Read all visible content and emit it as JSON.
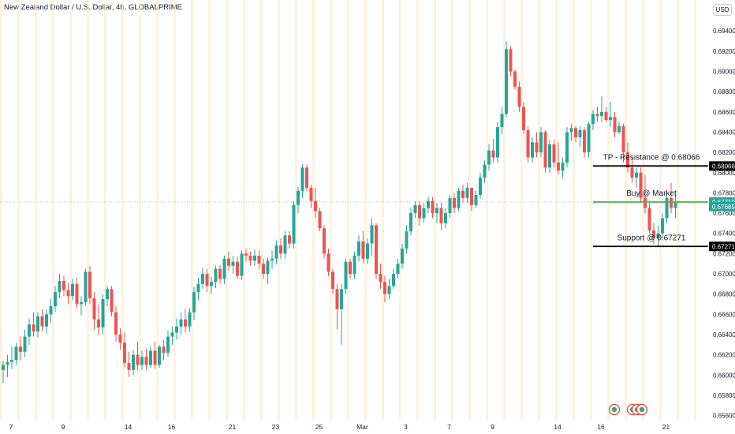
{
  "header": {
    "title": "New Zealand Dollar / U.S. Dollar, 4h, GLOBALPRIME",
    "currency": "USD"
  },
  "chart_data": {
    "type": "candlestick",
    "y_ticks": [
      "0.69400",
      "0.69200",
      "0.69000",
      "0.68800",
      "0.68600",
      "0.68400",
      "0.68200",
      "0.68000",
      "0.67800",
      "0.67600",
      "0.67400",
      "0.67200",
      "0.67000",
      "0.66800",
      "0.66600",
      "0.66400",
      "0.66200",
      "0.66000",
      "0.65800",
      "0.65600"
    ],
    "ylim": [
      0.6555,
      0.6955
    ],
    "x_ticks": [
      "7",
      "9",
      "14",
      "16",
      "21",
      "23",
      "25",
      "Mar",
      "3",
      "7",
      "9",
      "14",
      "16",
      "21"
    ],
    "x_tick_candle_index": [
      0,
      12,
      27,
      37,
      51,
      61,
      71,
      81,
      91,
      101,
      111,
      126,
      136,
      151
    ],
    "grid": false,
    "session_highlight": true,
    "candles": [
      {
        "o": 0.6605,
        "h": 0.6614,
        "l": 0.6592,
        "c": 0.661
      },
      {
        "o": 0.661,
        "h": 0.662,
        "l": 0.6598,
        "c": 0.6613
      },
      {
        "o": 0.6613,
        "h": 0.6628,
        "l": 0.6606,
        "c": 0.6615
      },
      {
        "o": 0.6615,
        "h": 0.6632,
        "l": 0.661,
        "c": 0.6628
      },
      {
        "o": 0.6628,
        "h": 0.6638,
        "l": 0.6615,
        "c": 0.6623
      },
      {
        "o": 0.6623,
        "h": 0.6645,
        "l": 0.6618,
        "c": 0.6638
      },
      {
        "o": 0.6638,
        "h": 0.6656,
        "l": 0.663,
        "c": 0.665
      },
      {
        "o": 0.665,
        "h": 0.6662,
        "l": 0.6638,
        "c": 0.6643
      },
      {
        "o": 0.6643,
        "h": 0.6662,
        "l": 0.6637,
        "c": 0.6658
      },
      {
        "o": 0.6658,
        "h": 0.6665,
        "l": 0.6643,
        "c": 0.6648
      },
      {
        "o": 0.6648,
        "h": 0.6665,
        "l": 0.6641,
        "c": 0.666
      },
      {
        "o": 0.666,
        "h": 0.6675,
        "l": 0.6652,
        "c": 0.6668
      },
      {
        "o": 0.6668,
        "h": 0.6688,
        "l": 0.6662,
        "c": 0.6682
      },
      {
        "o": 0.6682,
        "h": 0.67,
        "l": 0.6676,
        "c": 0.6693
      },
      {
        "o": 0.6693,
        "h": 0.6698,
        "l": 0.6678,
        "c": 0.6684
      },
      {
        "o": 0.6684,
        "h": 0.6691,
        "l": 0.667,
        "c": 0.6678
      },
      {
        "o": 0.6678,
        "h": 0.6695,
        "l": 0.6674,
        "c": 0.669
      },
      {
        "o": 0.669,
        "h": 0.6696,
        "l": 0.6666,
        "c": 0.667
      },
      {
        "o": 0.667,
        "h": 0.6678,
        "l": 0.6659,
        "c": 0.6672
      },
      {
        "o": 0.6672,
        "h": 0.6705,
        "l": 0.6668,
        "c": 0.6702
      },
      {
        "o": 0.6702,
        "h": 0.6708,
        "l": 0.667,
        "c": 0.6676
      },
      {
        "o": 0.6676,
        "h": 0.6682,
        "l": 0.6645,
        "c": 0.6655
      },
      {
        "o": 0.6655,
        "h": 0.667,
        "l": 0.6639,
        "c": 0.6647
      },
      {
        "o": 0.6647,
        "h": 0.668,
        "l": 0.664,
        "c": 0.6675
      },
      {
        "o": 0.6675,
        "h": 0.6688,
        "l": 0.6668,
        "c": 0.6685
      },
      {
        "o": 0.6685,
        "h": 0.6688,
        "l": 0.6658,
        "c": 0.6662
      },
      {
        "o": 0.6662,
        "h": 0.6668,
        "l": 0.6633,
        "c": 0.664
      },
      {
        "o": 0.664,
        "h": 0.6646,
        "l": 0.6625,
        "c": 0.6632
      },
      {
        "o": 0.6632,
        "h": 0.6642,
        "l": 0.6608,
        "c": 0.6612
      },
      {
        "o": 0.6612,
        "h": 0.6623,
        "l": 0.6598,
        "c": 0.6605
      },
      {
        "o": 0.6605,
        "h": 0.6625,
        "l": 0.66,
        "c": 0.662
      },
      {
        "o": 0.662,
        "h": 0.6633,
        "l": 0.6605,
        "c": 0.661
      },
      {
        "o": 0.661,
        "h": 0.6624,
        "l": 0.6605,
        "c": 0.6618
      },
      {
        "o": 0.6618,
        "h": 0.6626,
        "l": 0.6605,
        "c": 0.661
      },
      {
        "o": 0.661,
        "h": 0.6628,
        "l": 0.6607,
        "c": 0.6624
      },
      {
        "o": 0.6624,
        "h": 0.6633,
        "l": 0.6606,
        "c": 0.661
      },
      {
        "o": 0.661,
        "h": 0.663,
        "l": 0.6607,
        "c": 0.6628
      },
      {
        "o": 0.6628,
        "h": 0.6635,
        "l": 0.6615,
        "c": 0.6622
      },
      {
        "o": 0.6622,
        "h": 0.6644,
        "l": 0.6618,
        "c": 0.6638
      },
      {
        "o": 0.6638,
        "h": 0.6648,
        "l": 0.663,
        "c": 0.6642
      },
      {
        "o": 0.6642,
        "h": 0.6656,
        "l": 0.6635,
        "c": 0.6648
      },
      {
        "o": 0.6648,
        "h": 0.6662,
        "l": 0.664,
        "c": 0.6655
      },
      {
        "o": 0.6655,
        "h": 0.6665,
        "l": 0.6642,
        "c": 0.6648
      },
      {
        "o": 0.6648,
        "h": 0.6666,
        "l": 0.6643,
        "c": 0.6662
      },
      {
        "o": 0.6662,
        "h": 0.6687,
        "l": 0.6654,
        "c": 0.6682
      },
      {
        "o": 0.6682,
        "h": 0.6696,
        "l": 0.6674,
        "c": 0.669
      },
      {
        "o": 0.669,
        "h": 0.6706,
        "l": 0.6685,
        "c": 0.67
      },
      {
        "o": 0.67,
        "h": 0.6705,
        "l": 0.6682,
        "c": 0.6688
      },
      {
        "o": 0.6688,
        "h": 0.6697,
        "l": 0.668,
        "c": 0.6692
      },
      {
        "o": 0.6692,
        "h": 0.6708,
        "l": 0.6686,
        "c": 0.6705
      },
      {
        "o": 0.6705,
        "h": 0.6709,
        "l": 0.669,
        "c": 0.6695
      },
      {
        "o": 0.6695,
        "h": 0.6718,
        "l": 0.669,
        "c": 0.6715
      },
      {
        "o": 0.6715,
        "h": 0.6722,
        "l": 0.6703,
        "c": 0.6708
      },
      {
        "o": 0.6708,
        "h": 0.6718,
        "l": 0.67,
        "c": 0.6712
      },
      {
        "o": 0.6712,
        "h": 0.6717,
        "l": 0.6695,
        "c": 0.6698
      },
      {
        "o": 0.6698,
        "h": 0.6723,
        "l": 0.6694,
        "c": 0.672
      },
      {
        "o": 0.672,
        "h": 0.6725,
        "l": 0.6712,
        "c": 0.6718
      },
      {
        "o": 0.6718,
        "h": 0.6722,
        "l": 0.6708,
        "c": 0.6713
      },
      {
        "o": 0.6713,
        "h": 0.6724,
        "l": 0.6708,
        "c": 0.6718
      },
      {
        "o": 0.6718,
        "h": 0.6723,
        "l": 0.6705,
        "c": 0.671
      },
      {
        "o": 0.671,
        "h": 0.6715,
        "l": 0.6695,
        "c": 0.67
      },
      {
        "o": 0.67,
        "h": 0.6716,
        "l": 0.669,
        "c": 0.6713
      },
      {
        "o": 0.6713,
        "h": 0.6723,
        "l": 0.6705,
        "c": 0.6715
      },
      {
        "o": 0.6715,
        "h": 0.6733,
        "l": 0.671,
        "c": 0.6728
      },
      {
        "o": 0.6728,
        "h": 0.6735,
        "l": 0.6715,
        "c": 0.672
      },
      {
        "o": 0.672,
        "h": 0.6742,
        "l": 0.6715,
        "c": 0.6738
      },
      {
        "o": 0.6738,
        "h": 0.6742,
        "l": 0.6725,
        "c": 0.673
      },
      {
        "o": 0.673,
        "h": 0.6772,
        "l": 0.6725,
        "c": 0.6768
      },
      {
        "o": 0.6768,
        "h": 0.6786,
        "l": 0.676,
        "c": 0.6782
      },
      {
        "o": 0.6782,
        "h": 0.6808,
        "l": 0.6775,
        "c": 0.6805
      },
      {
        "o": 0.6805,
        "h": 0.6808,
        "l": 0.6782,
        "c": 0.6785
      },
      {
        "o": 0.6785,
        "h": 0.6788,
        "l": 0.6765,
        "c": 0.6772
      },
      {
        "o": 0.6772,
        "h": 0.6785,
        "l": 0.6755,
        "c": 0.6762
      },
      {
        "o": 0.6762,
        "h": 0.6765,
        "l": 0.6742,
        "c": 0.6745
      },
      {
        "o": 0.6745,
        "h": 0.6748,
        "l": 0.6715,
        "c": 0.672
      },
      {
        "o": 0.672,
        "h": 0.6725,
        "l": 0.6698,
        "c": 0.6702
      },
      {
        "o": 0.6702,
        "h": 0.6705,
        "l": 0.668,
        "c": 0.6685
      },
      {
        "o": 0.6685,
        "h": 0.669,
        "l": 0.6645,
        "c": 0.6665
      },
      {
        "o": 0.6665,
        "h": 0.669,
        "l": 0.663,
        "c": 0.6685
      },
      {
        "o": 0.6685,
        "h": 0.6715,
        "l": 0.668,
        "c": 0.6712
      },
      {
        "o": 0.6712,
        "h": 0.6715,
        "l": 0.6695,
        "c": 0.67
      },
      {
        "o": 0.67,
        "h": 0.6722,
        "l": 0.6695,
        "c": 0.6718
      },
      {
        "o": 0.6718,
        "h": 0.6738,
        "l": 0.6712,
        "c": 0.6732
      },
      {
        "o": 0.6732,
        "h": 0.6742,
        "l": 0.671,
        "c": 0.6715
      },
      {
        "o": 0.6715,
        "h": 0.6735,
        "l": 0.671,
        "c": 0.673
      },
      {
        "o": 0.673,
        "h": 0.6755,
        "l": 0.6718,
        "c": 0.6748
      },
      {
        "o": 0.6748,
        "h": 0.675,
        "l": 0.6695,
        "c": 0.67
      },
      {
        "o": 0.67,
        "h": 0.671,
        "l": 0.6685,
        "c": 0.6692
      },
      {
        "o": 0.6692,
        "h": 0.6698,
        "l": 0.6672,
        "c": 0.668
      },
      {
        "o": 0.668,
        "h": 0.6695,
        "l": 0.6675,
        "c": 0.6688
      },
      {
        "o": 0.6688,
        "h": 0.6705,
        "l": 0.6685,
        "c": 0.67
      },
      {
        "o": 0.67,
        "h": 0.6715,
        "l": 0.6696,
        "c": 0.671
      },
      {
        "o": 0.671,
        "h": 0.673,
        "l": 0.6705,
        "c": 0.6725
      },
      {
        "o": 0.6725,
        "h": 0.6748,
        "l": 0.672,
        "c": 0.6742
      },
      {
        "o": 0.6742,
        "h": 0.6765,
        "l": 0.6738,
        "c": 0.676
      },
      {
        "o": 0.676,
        "h": 0.6772,
        "l": 0.6755,
        "c": 0.6768
      },
      {
        "o": 0.6768,
        "h": 0.6772,
        "l": 0.6748,
        "c": 0.6755
      },
      {
        "o": 0.6755,
        "h": 0.677,
        "l": 0.675,
        "c": 0.6765
      },
      {
        "o": 0.6765,
        "h": 0.6776,
        "l": 0.676,
        "c": 0.6772
      },
      {
        "o": 0.6772,
        "h": 0.6776,
        "l": 0.6755,
        "c": 0.676
      },
      {
        "o": 0.676,
        "h": 0.677,
        "l": 0.675,
        "c": 0.6765
      },
      {
        "o": 0.6765,
        "h": 0.677,
        "l": 0.6743,
        "c": 0.675
      },
      {
        "o": 0.675,
        "h": 0.6765,
        "l": 0.6745,
        "c": 0.676
      },
      {
        "o": 0.676,
        "h": 0.6778,
        "l": 0.6755,
        "c": 0.6775
      },
      {
        "o": 0.6775,
        "h": 0.678,
        "l": 0.676,
        "c": 0.6765
      },
      {
        "o": 0.6765,
        "h": 0.6785,
        "l": 0.6762,
        "c": 0.6782
      },
      {
        "o": 0.6782,
        "h": 0.6788,
        "l": 0.677,
        "c": 0.6775
      },
      {
        "o": 0.6775,
        "h": 0.679,
        "l": 0.677,
        "c": 0.6785
      },
      {
        "o": 0.6785,
        "h": 0.6785,
        "l": 0.6762,
        "c": 0.6768
      },
      {
        "o": 0.6768,
        "h": 0.6782,
        "l": 0.6765,
        "c": 0.6778
      },
      {
        "o": 0.6778,
        "h": 0.68,
        "l": 0.6774,
        "c": 0.6795
      },
      {
        "o": 0.6795,
        "h": 0.6812,
        "l": 0.679,
        "c": 0.6808
      },
      {
        "o": 0.6808,
        "h": 0.6828,
        "l": 0.6802,
        "c": 0.6822
      },
      {
        "o": 0.6822,
        "h": 0.6833,
        "l": 0.681,
        "c": 0.6815
      },
      {
        "o": 0.6815,
        "h": 0.685,
        "l": 0.681,
        "c": 0.6845
      },
      {
        "o": 0.6845,
        "h": 0.6865,
        "l": 0.6838,
        "c": 0.6858
      },
      {
        "o": 0.6858,
        "h": 0.693,
        "l": 0.6855,
        "c": 0.6922
      },
      {
        "o": 0.6922,
        "h": 0.6925,
        "l": 0.6895,
        "c": 0.69
      },
      {
        "o": 0.69,
        "h": 0.6902,
        "l": 0.6882,
        "c": 0.6885
      },
      {
        "o": 0.6885,
        "h": 0.689,
        "l": 0.686,
        "c": 0.6865
      },
      {
        "o": 0.6865,
        "h": 0.687,
        "l": 0.6838,
        "c": 0.6842
      },
      {
        "o": 0.6842,
        "h": 0.6846,
        "l": 0.681,
        "c": 0.6815
      },
      {
        "o": 0.6815,
        "h": 0.6835,
        "l": 0.681,
        "c": 0.683
      },
      {
        "o": 0.683,
        "h": 0.684,
        "l": 0.6815,
        "c": 0.682
      },
      {
        "o": 0.682,
        "h": 0.6845,
        "l": 0.6815,
        "c": 0.684
      },
      {
        "o": 0.684,
        "h": 0.6842,
        "l": 0.68,
        "c": 0.6805
      },
      {
        "o": 0.6805,
        "h": 0.6832,
        "l": 0.68,
        "c": 0.6828
      },
      {
        "o": 0.6828,
        "h": 0.6833,
        "l": 0.6805,
        "c": 0.681
      },
      {
        "o": 0.681,
        "h": 0.683,
        "l": 0.6798,
        "c": 0.6802
      },
      {
        "o": 0.6802,
        "h": 0.6815,
        "l": 0.6795,
        "c": 0.681
      },
      {
        "o": 0.681,
        "h": 0.6845,
        "l": 0.6805,
        "c": 0.684
      },
      {
        "o": 0.684,
        "h": 0.6848,
        "l": 0.6832,
        "c": 0.6844
      },
      {
        "o": 0.6844,
        "h": 0.6846,
        "l": 0.683,
        "c": 0.6835
      },
      {
        "o": 0.6835,
        "h": 0.6846,
        "l": 0.6825,
        "c": 0.6842
      },
      {
        "o": 0.6842,
        "h": 0.6845,
        "l": 0.6815,
        "c": 0.682
      },
      {
        "o": 0.682,
        "h": 0.685,
        "l": 0.6815,
        "c": 0.6848
      },
      {
        "o": 0.6848,
        "h": 0.6862,
        "l": 0.6842,
        "c": 0.6858
      },
      {
        "o": 0.6858,
        "h": 0.6865,
        "l": 0.685,
        "c": 0.6856
      },
      {
        "o": 0.6856,
        "h": 0.6875,
        "l": 0.685,
        "c": 0.686
      },
      {
        "o": 0.686,
        "h": 0.6865,
        "l": 0.685,
        "c": 0.6852
      },
      {
        "o": 0.6852,
        "h": 0.687,
        "l": 0.6845,
        "c": 0.6855
      },
      {
        "o": 0.6855,
        "h": 0.686,
        "l": 0.6835,
        "c": 0.684
      },
      {
        "o": 0.684,
        "h": 0.685,
        "l": 0.6838,
        "c": 0.6846
      },
      {
        "o": 0.6846,
        "h": 0.6848,
        "l": 0.681,
        "c": 0.682
      },
      {
        "o": 0.682,
        "h": 0.683,
        "l": 0.68,
        "c": 0.6805
      },
      {
        "o": 0.6805,
        "h": 0.6815,
        "l": 0.679,
        "c": 0.6795
      },
      {
        "o": 0.6795,
        "h": 0.6805,
        "l": 0.6785,
        "c": 0.68
      },
      {
        "o": 0.68,
        "h": 0.6805,
        "l": 0.677,
        "c": 0.6775
      },
      {
        "o": 0.6775,
        "h": 0.6798,
        "l": 0.676,
        "c": 0.6765
      },
      {
        "o": 0.6765,
        "h": 0.677,
        "l": 0.674,
        "c": 0.6743
      },
      {
        "o": 0.6743,
        "h": 0.675,
        "l": 0.6729,
        "c": 0.6735
      },
      {
        "o": 0.6735,
        "h": 0.6748,
        "l": 0.67271,
        "c": 0.674
      },
      {
        "o": 0.674,
        "h": 0.676,
        "l": 0.6735,
        "c": 0.6755
      },
      {
        "o": 0.6755,
        "h": 0.678,
        "l": 0.675,
        "c": 0.6775
      },
      {
        "o": 0.6775,
        "h": 0.679,
        "l": 0.676,
        "c": 0.6765
      },
      {
        "o": 0.6765,
        "h": 0.6778,
        "l": 0.6755,
        "c": 0.6771
      }
    ],
    "annotations": [
      {
        "label": "TP - Resistance @ 0.68066",
        "price": 0.68066,
        "tag": "0.68066",
        "color": "#000000"
      },
      {
        "label": "Buy @ Market",
        "price": 0.6771,
        "tag": "0.67710",
        "color": "#4caf50"
      },
      {
        "label": "Support @ 0.67271",
        "price": 0.67271,
        "tag": "0.67271",
        "color": "#000000"
      }
    ],
    "last_price": {
      "value": 0.6771,
      "label": "0.67710",
      "color": "#26a69a"
    },
    "extra_price_tag": {
      "value": 0.67685,
      "label": "0.67685",
      "color": "#26a69a"
    },
    "colors": {
      "up": "#26a69a",
      "down": "#ef5350",
      "session": "#fde7c4"
    }
  }
}
